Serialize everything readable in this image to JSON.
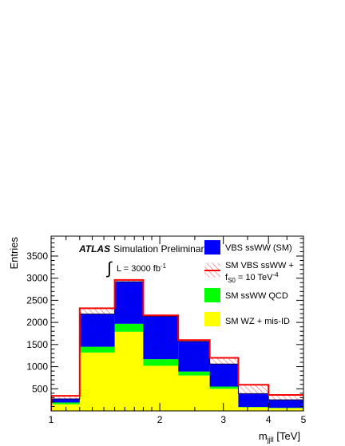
{
  "chart_data": {
    "type": "bar",
    "subtype": "stacked-histogram",
    "xscale": "log",
    "xlim": [
      1,
      5
    ],
    "ylim": [
      0,
      3950
    ],
    "xlabel_main": "m",
    "xlabel_sub": "jjll",
    "xlabel_unit": " [TeV]",
    "ylabel": "Entries",
    "xticks": [
      {
        "v": 1,
        "label": "1"
      },
      {
        "v": 2,
        "label": "2"
      },
      {
        "v": 3,
        "label": "3"
      },
      {
        "v": 4,
        "label": "4"
      },
      {
        "v": 5,
        "label": "5"
      }
    ],
    "yticks": [
      {
        "v": 500,
        "label": "500"
      },
      {
        "v": 1000,
        "label": "1000"
      },
      {
        "v": 1500,
        "label": "1500"
      },
      {
        "v": 2000,
        "label": "2000"
      },
      {
        "v": 2500,
        "label": "2500"
      },
      {
        "v": 3000,
        "label": "3000"
      },
      {
        "v": 3500,
        "label": "3500"
      }
    ],
    "bin_edges": [
      1.0,
      1.2,
      1.5,
      1.8,
      2.25,
      2.75,
      3.3,
      4.0,
      5.0
    ],
    "stack": [
      {
        "name": "SM WZ + mis-ID",
        "color": "#ffff00",
        "values": [
          150,
          1320,
          1790,
          1020,
          800,
          500,
          80,
          60
        ]
      },
      {
        "name": "SM ssWW QCD",
        "color": "#00ff00",
        "values": [
          40,
          130,
          180,
          150,
          90,
          50,
          10,
          10
        ]
      },
      {
        "name": "VBS ssWW (SM)",
        "color": "#0000ff",
        "values": [
          80,
          740,
          950,
          970,
          680,
          510,
          300,
          180
        ]
      }
    ],
    "signal": {
      "name": "SM VBS ssWW + fS0 = 10 TeV-4",
      "line_color": "#ff0000",
      "totals": [
        340,
        2320,
        2960,
        2160,
        1600,
        1200,
        590,
        360
      ]
    },
    "annotation": {
      "atlas": "ATLAS",
      "label": "Simulation Preliminary",
      "lumi_prefix": "L = 3000 fb",
      "lumi_sup": "-1"
    },
    "legend": {
      "placement": "top-right",
      "entries": [
        {
          "key": "vbs",
          "text": "VBS ssWW (SM)",
          "style": "fill",
          "color": "#0000ff"
        },
        {
          "key": "sig",
          "text": "SM VBS ssWW +",
          "text2_main": "f",
          "text2_sub": "S0",
          "text2_rest": " = 10 TeV",
          "text2_sup": "-4",
          "style": "hatch-line",
          "color": "#ff0000"
        },
        {
          "key": "qcd",
          "text": "SM ssWW QCD",
          "style": "fill",
          "color": "#00ff00"
        },
        {
          "key": "wz",
          "text": "SM WZ + mis-ID",
          "style": "fill",
          "color": "#ffff00"
        }
      ]
    }
  }
}
